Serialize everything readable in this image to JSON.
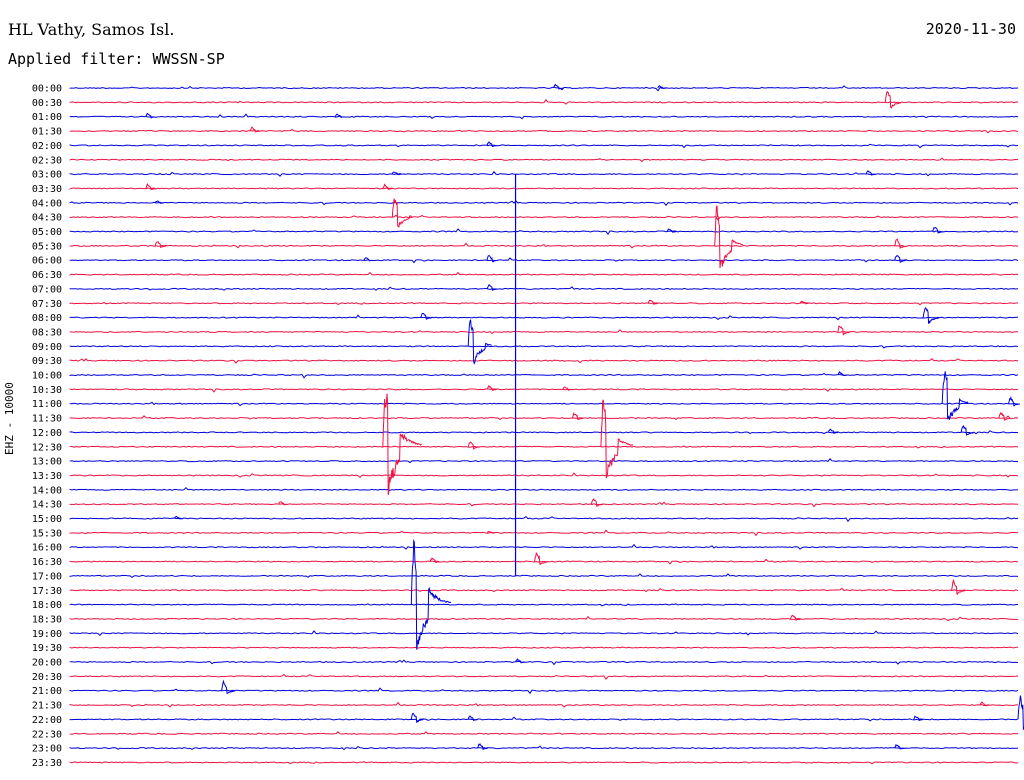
{
  "header": {
    "station": "HL Vathy, Samos Isl.",
    "date": "2020-11-30",
    "filter": "Applied filter: WWSSN-SP"
  },
  "channel_label": "EHZ - 10000",
  "colors": {
    "odd": "#0000dd",
    "even": "#ee1144"
  },
  "chart_data": {
    "type": "line",
    "title": "HL Vathy, Samos Isl.",
    "subtitle": "Applied filter: WWSSN-SP",
    "ylabel": "EHZ - 10000",
    "xlabel": "",
    "grid": false,
    "legend": "none",
    "time_labels": [
      "00:00",
      "00:30",
      "01:00",
      "01:30",
      "02:00",
      "02:30",
      "03:00",
      "03:30",
      "04:00",
      "04:30",
      "05:00",
      "05:30",
      "06:00",
      "06:30",
      "07:00",
      "07:30",
      "08:00",
      "08:30",
      "09:00",
      "09:30",
      "10:00",
      "10:30",
      "11:00",
      "11:30",
      "12:00",
      "12:30",
      "13:00",
      "13:30",
      "14:00",
      "14:30",
      "15:00",
      "15:30",
      "16:00",
      "16:30",
      "17:00",
      "17:30",
      "18:00",
      "18:30",
      "19:00",
      "19:30",
      "20:00",
      "20:30",
      "21:00",
      "21:30",
      "22:00",
      "22:30",
      "23:00",
      "23:30"
    ],
    "trace_minutes": 30,
    "events": [
      {
        "row": 0,
        "t": 0.51,
        "amp": 0.6
      },
      {
        "row": 0,
        "t": 0.62,
        "amp": 0.4
      },
      {
        "row": 1,
        "t": 0.86,
        "amp": 1.6
      },
      {
        "row": 2,
        "t": 0.08,
        "amp": 0.6
      },
      {
        "row": 2,
        "t": 0.28,
        "amp": 0.5
      },
      {
        "row": 3,
        "t": 0.19,
        "amp": 0.6
      },
      {
        "row": 4,
        "t": 0.44,
        "amp": 0.6
      },
      {
        "row": 6,
        "t": 0.34,
        "amp": 0.5
      },
      {
        "row": 6,
        "t": 0.84,
        "amp": 0.6
      },
      {
        "row": 7,
        "t": 0.08,
        "amp": 0.7
      },
      {
        "row": 7,
        "t": 0.33,
        "amp": 0.6
      },
      {
        "row": 8,
        "t": 0.09,
        "amp": 0.4
      },
      {
        "row": 9,
        "t": 0.34,
        "amp": 2.4
      },
      {
        "row": 10,
        "t": 0.63,
        "amp": 0.5
      },
      {
        "row": 10,
        "t": 0.91,
        "amp": 0.8
      },
      {
        "row": 11,
        "t": 0.09,
        "amp": 0.8
      },
      {
        "row": 11,
        "t": 0.68,
        "amp": 3.8
      },
      {
        "row": 11,
        "t": 0.87,
        "amp": 1.0
      },
      {
        "row": 12,
        "t": 0.31,
        "amp": 0.5
      },
      {
        "row": 12,
        "t": 0.44,
        "amp": 0.8
      },
      {
        "row": 12,
        "t": 0.87,
        "amp": 0.9
      },
      {
        "row": 14,
        "t": 0.44,
        "amp": 0.7
      },
      {
        "row": 15,
        "t": 0.61,
        "amp": 0.6
      },
      {
        "row": 15,
        "t": 0.77,
        "amp": 0.4
      },
      {
        "row": 16,
        "t": 0.37,
        "amp": 0.8
      },
      {
        "row": 16,
        "t": 0.9,
        "amp": 1.6
      },
      {
        "row": 17,
        "t": 0.81,
        "amp": 1.0
      },
      {
        "row": 18,
        "t": 0.42,
        "amp": 3.0
      },
      {
        "row": 20,
        "t": 0.81,
        "amp": 0.5
      },
      {
        "row": 21,
        "t": 0.44,
        "amp": 0.6
      },
      {
        "row": 21,
        "t": 0.52,
        "amp": 0.5
      },
      {
        "row": 22,
        "t": 0.92,
        "amp": 3.4
      },
      {
        "row": 22,
        "t": 0.99,
        "amp": 0.9
      },
      {
        "row": 23,
        "t": 0.53,
        "amp": 0.8
      },
      {
        "row": 23,
        "t": 0.98,
        "amp": 0.9
      },
      {
        "row": 24,
        "t": 0.8,
        "amp": 0.6
      },
      {
        "row": 24,
        "t": 0.94,
        "amp": 1.1
      },
      {
        "row": 25,
        "t": 0.33,
        "amp": 5.6
      },
      {
        "row": 25,
        "t": 0.42,
        "amp": 0.9
      },
      {
        "row": 25,
        "t": 0.56,
        "amp": 4.4
      },
      {
        "row": 29,
        "t": 0.22,
        "amp": 0.5
      },
      {
        "row": 29,
        "t": 0.55,
        "amp": 0.9
      },
      {
        "row": 30,
        "t": 0.11,
        "amp": 0.4
      },
      {
        "row": 31,
        "t": 0.44,
        "amp": 0.3
      },
      {
        "row": 33,
        "t": 0.38,
        "amp": 0.6
      },
      {
        "row": 33,
        "t": 0.49,
        "amp": 1.2
      },
      {
        "row": 35,
        "t": 0.93,
        "amp": 1.3
      },
      {
        "row": 36,
        "t": 0.36,
        "amp": 5.8
      },
      {
        "row": 37,
        "t": 0.76,
        "amp": 0.7
      },
      {
        "row": 40,
        "t": 0.47,
        "amp": 0.5
      },
      {
        "row": 42,
        "t": 0.16,
        "amp": 1.2
      },
      {
        "row": 43,
        "t": 0.96,
        "amp": 0.5
      },
      {
        "row": 44,
        "t": 0.36,
        "amp": 1.0
      },
      {
        "row": 44,
        "t": 0.42,
        "amp": 0.6
      },
      {
        "row": 44,
        "t": 0.89,
        "amp": 0.6
      },
      {
        "row": 44,
        "t": 1.0,
        "amp": 2.6
      },
      {
        "row": 46,
        "t": 0.43,
        "amp": 0.7
      },
      {
        "row": 46,
        "t": 0.87,
        "amp": 0.6
      }
    ],
    "spikes": [
      {
        "from_row": 6,
        "to_row": 34,
        "t": 0.47
      }
    ]
  }
}
